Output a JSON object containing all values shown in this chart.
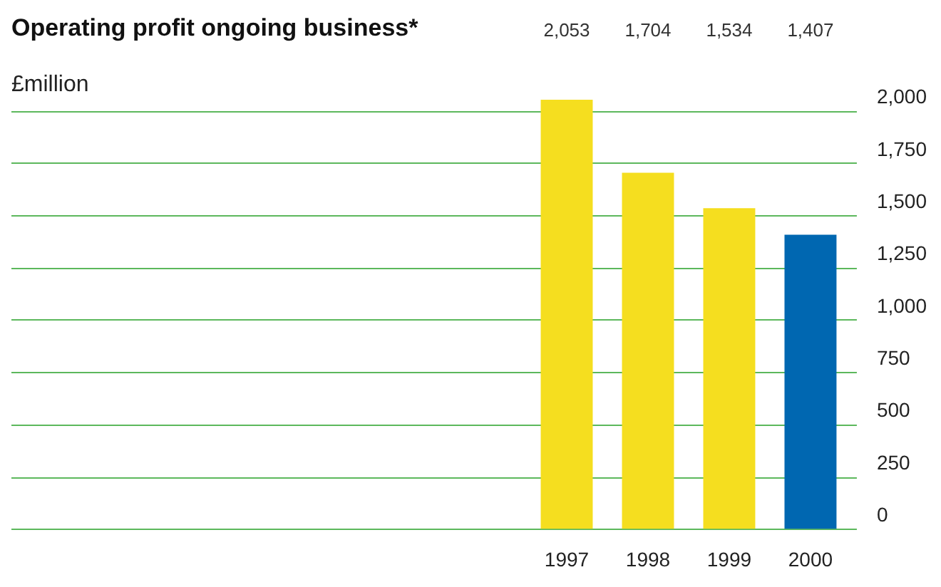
{
  "chart_data": {
    "type": "bar",
    "title": "Operating profit ongoing business*",
    "annotations": [
      "£million"
    ],
    "categories": [
      "1997",
      "1998",
      "1999",
      "2000"
    ],
    "values": [
      2053,
      1704,
      1534,
      1407
    ],
    "colors": [
      "#f5de1f",
      "#f5de1f",
      "#f5de1f",
      "#0067b1"
    ],
    "value_labels": [
      "2,053",
      "1,704",
      "1,534",
      "1,407"
    ],
    "ylim": [
      0,
      2053
    ],
    "yticks": [
      0,
      250,
      500,
      750,
      {
        "value": 1000,
        "label": "1,000"
      },
      {
        "value": 1250,
        "label": "1,250"
      },
      {
        "value": 1500,
        "label": "1,500"
      },
      {
        "value": 1750,
        "label": "1,750"
      },
      {
        "value": 2000,
        "label": "2,000"
      }
    ],
    "grid": "y",
    "legend": false
  }
}
